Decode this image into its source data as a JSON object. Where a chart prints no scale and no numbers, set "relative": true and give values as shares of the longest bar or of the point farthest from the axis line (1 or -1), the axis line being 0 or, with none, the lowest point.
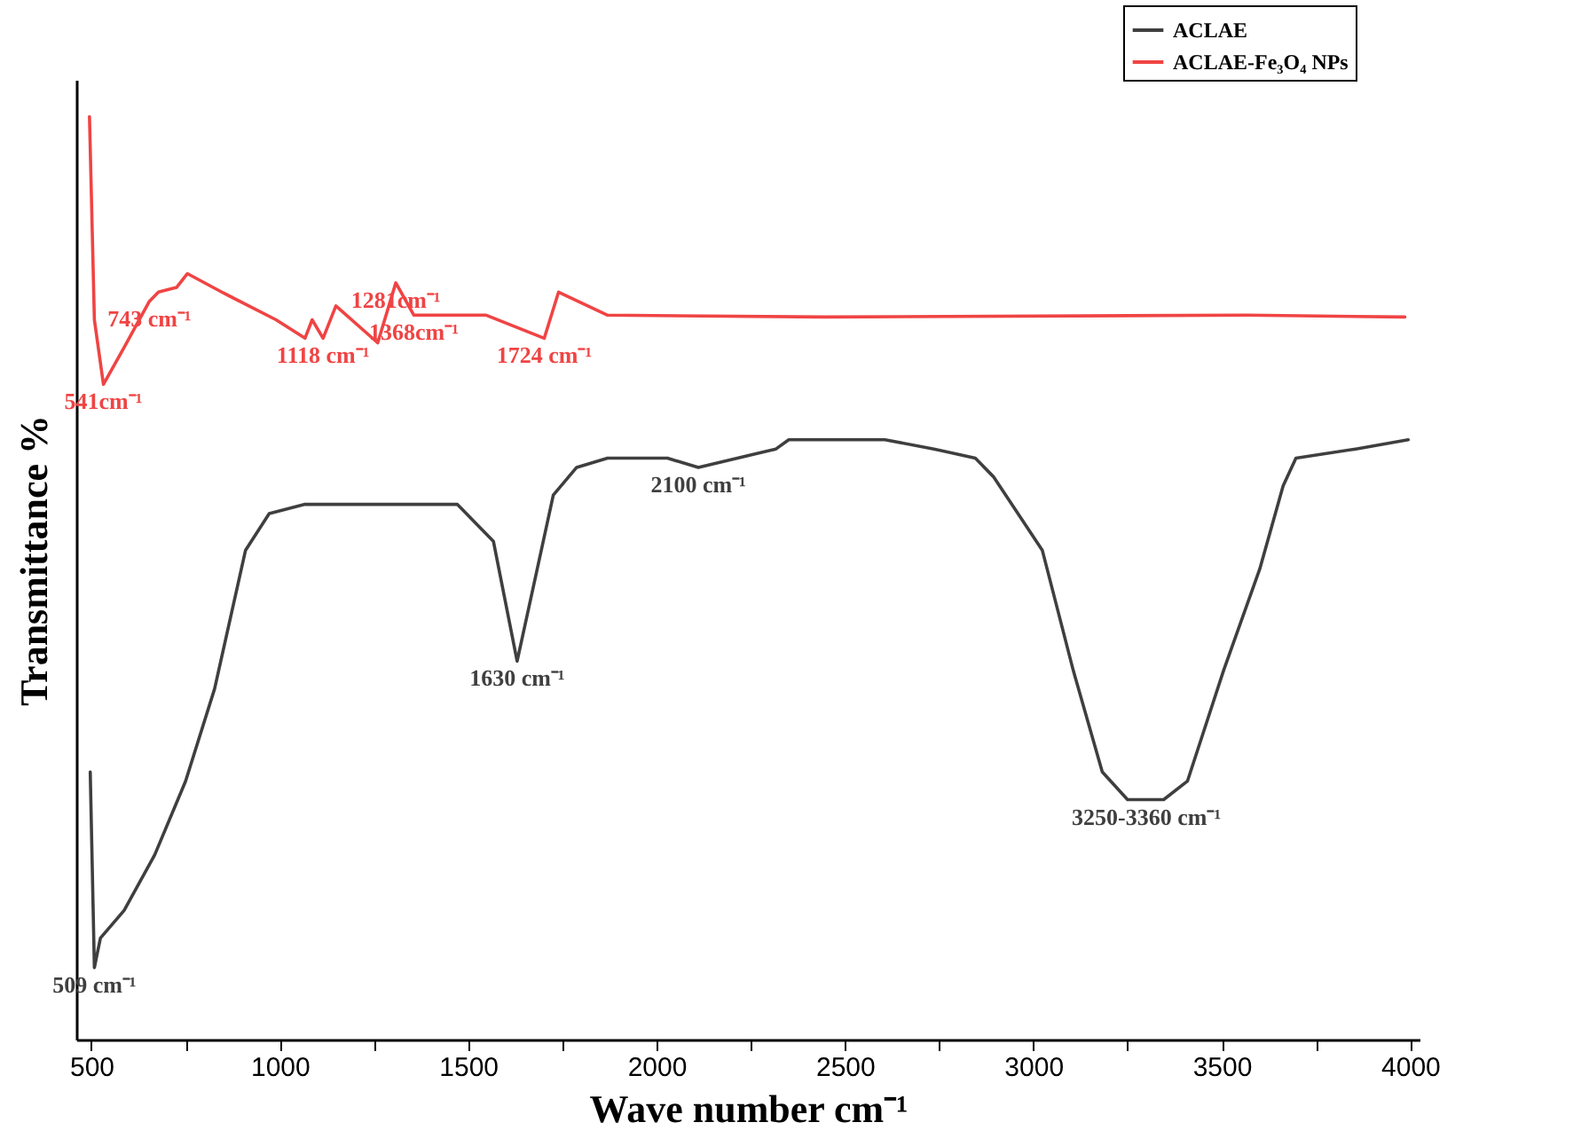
{
  "chart_data": {
    "type": "line",
    "relative": true,
    "xlabel": "Wave number cm⁻¹",
    "ylabel": "Transmittance %",
    "xlim": [
      460,
      4025
    ],
    "xticks": [
      500,
      {
        "value": 750,
        "label": null
      },
      1000,
      {
        "value": 1250,
        "label": null
      },
      1500,
      {
        "value": 1750,
        "label": null
      },
      2000,
      {
        "value": 2250,
        "label": null
      },
      2500,
      {
        "value": 2750,
        "label": null
      },
      3000,
      {
        "value": 3250,
        "label": null
      },
      3500,
      {
        "value": 3750,
        "label": null
      },
      4000
    ],
    "legend": "top right",
    "marker": "none",
    "line_style": "solid",
    "grid": false,
    "series": [
      {
        "name": "ACLAE",
        "color": "#3f3f3f",
        "x": [
          497,
          508,
          524,
          587,
          668,
          750,
          827,
          909,
          972,
          1067,
          1308,
          1471,
          1567,
          1630,
          1678,
          1726,
          1788,
          1870,
          2029,
          2111,
          2317,
          2351,
          2606,
          2736,
          2846,
          2894,
          3024,
          3106,
          3183,
          3250,
          3346,
          3409,
          3505,
          3601,
          3663,
          3697,
          3856,
          3995
        ],
        "values": [
          0.29,
          0.078,
          0.11,
          0.14,
          0.2,
          0.28,
          0.38,
          0.53,
          0.57,
          0.58,
          0.58,
          0.58,
          0.54,
          0.41,
          0.5,
          0.59,
          0.62,
          0.63,
          0.63,
          0.62,
          0.64,
          0.65,
          0.65,
          0.64,
          0.63,
          0.61,
          0.53,
          0.4,
          0.29,
          0.26,
          0.26,
          0.28,
          0.4,
          0.51,
          0.6,
          0.63,
          0.64,
          0.65
        ]
      },
      {
        "name": "ACLAE-Fe₃O₄ NPs",
        "color": "#f04444",
        "x": [
          495,
          508,
          532,
          587,
          654,
          678,
          726,
          755,
          846,
          990,
          1067,
          1086,
          1115,
          1149,
          1260,
          1308,
          1356,
          1548,
          1702,
          1740,
          1870,
          2447,
          3567,
          3986
        ],
        "values": [
          1.0,
          0.78,
          0.71,
          0.75,
          0.8,
          0.81,
          0.815,
          0.83,
          0.81,
          0.78,
          0.76,
          0.78,
          0.76,
          0.795,
          0.755,
          0.82,
          0.785,
          0.785,
          0.76,
          0.81,
          0.785,
          0.783,
          0.785,
          0.783
        ]
      }
    ],
    "annotations": [
      {
        "text": "509 cm⁻¹",
        "x": 508,
        "y": 0.078
      },
      {
        "text": "1630 cm⁻¹",
        "x": 1630,
        "y": 0.41
      },
      {
        "text": "2100 cm⁻¹",
        "x": 2111,
        "y": 0.62
      },
      {
        "text": "3250-3360 cm⁻¹",
        "x": 3300,
        "y": 0.26
      },
      {
        "text": "541cm⁻¹",
        "x": 532,
        "y": 0.71
      },
      {
        "text": "743 cm⁻¹",
        "x": 654,
        "y": 0.8
      },
      {
        "text": "1118 cm⁻¹",
        "x": 1115,
        "y": 0.76
      },
      {
        "text": "1281cm⁻¹",
        "x": 1308,
        "y": 0.82
      },
      {
        "text": "1368cm⁻¹",
        "x": 1356,
        "y": 0.785
      },
      {
        "text": "1724 cm⁻¹",
        "x": 1702,
        "y": 0.76
      }
    ]
  }
}
